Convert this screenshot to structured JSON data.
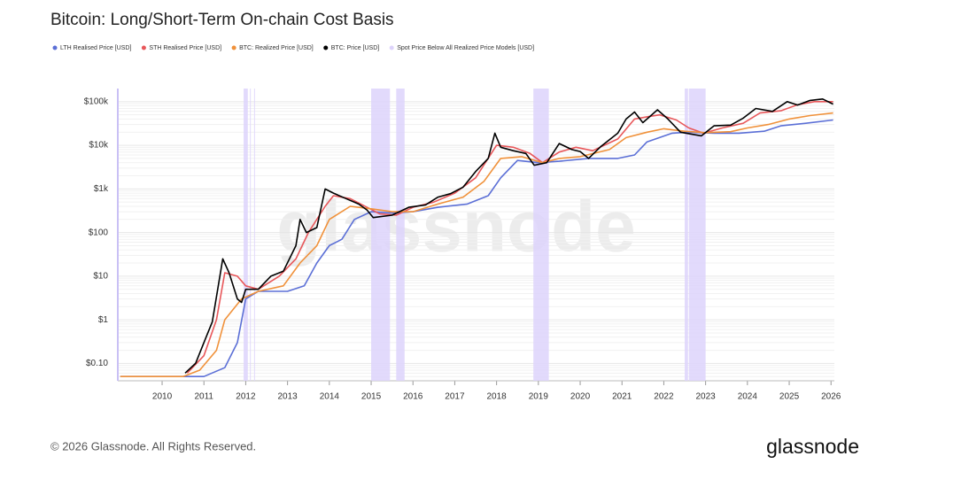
{
  "chart_data": {
    "type": "line",
    "title": "Bitcoin: Long/Short-Term On-chain Cost Basis",
    "watermark": "glassnode",
    "log_scale": true,
    "xlim": [
      2008.94,
      2026.08
    ],
    "xticks": [
      2010,
      2011,
      2012,
      2013,
      2014,
      2015,
      2016,
      2017,
      2018,
      2019,
      2020,
      2021,
      2022,
      2023,
      2024,
      2025,
      2026
    ],
    "ylim": [
      0.04,
      200000
    ],
    "yticks": [
      {
        "value": 0.1,
        "label": "$0.10"
      },
      {
        "value": 1,
        "label": "$1"
      },
      {
        "value": 10,
        "label": "$10"
      },
      {
        "value": 100,
        "label": "$100"
      },
      {
        "value": 1000,
        "label": "$1k"
      },
      {
        "value": 10000,
        "label": "$10k"
      },
      {
        "value": 100000,
        "label": "$100k"
      }
    ],
    "series": [
      {
        "name": "LTH Realised Price [USD]",
        "color": "#5b6fd6",
        "x": [
          2009.0,
          2010.5,
          2011.0,
          2011.5,
          2011.8,
          2012.0,
          2012.3,
          2013.0,
          2013.4,
          2013.7,
          2014.0,
          2014.3,
          2014.6,
          2015.0,
          2015.5,
          2016.0,
          2016.6,
          2017.3,
          2017.8,
          2018.1,
          2018.5,
          2019.0,
          2019.5,
          2020.2,
          2020.9,
          2021.3,
          2021.6,
          2022.2,
          2022.6,
          2023.2,
          2023.8,
          2024.4,
          2024.8,
          2025.4,
          2026.05
        ],
        "values": [
          0.05,
          0.05,
          0.05,
          0.08,
          0.3,
          3,
          4.5,
          4.5,
          6,
          20,
          50,
          70,
          200,
          300,
          280,
          300,
          380,
          450,
          700,
          1800,
          4500,
          4000,
          4300,
          5000,
          5000,
          6000,
          12000,
          19000,
          20000,
          19000,
          19000,
          21000,
          28000,
          32000,
          38000
        ]
      },
      {
        "name": "STH Realised Price [USD]",
        "color": "#e8575a",
        "x": [
          2010.6,
          2011.0,
          2011.3,
          2011.5,
          2011.8,
          2012.0,
          2012.3,
          2012.8,
          2013.2,
          2013.5,
          2013.9,
          2014.1,
          2014.5,
          2014.9,
          2015.2,
          2015.6,
          2016.0,
          2016.5,
          2017.0,
          2017.5,
          2018.0,
          2018.4,
          2018.8,
          2019.1,
          2019.5,
          2019.9,
          2020.3,
          2020.9,
          2021.3,
          2021.6,
          2021.9,
          2022.3,
          2022.6,
          2022.95,
          2023.4,
          2023.9,
          2024.3,
          2024.8,
          2025.2,
          2025.6,
          2026.05
        ],
        "values": [
          0.06,
          0.15,
          1,
          12,
          10,
          6,
          5,
          10,
          25,
          100,
          400,
          700,
          600,
          380,
          270,
          250,
          380,
          500,
          800,
          1800,
          10000,
          9000,
          6500,
          4000,
          7000,
          9000,
          7500,
          14000,
          40000,
          45000,
          50000,
          38000,
          25000,
          19000,
          25000,
          32000,
          55000,
          62000,
          85000,
          100000,
          100000
        ]
      },
      {
        "name": "BTC: Realized Price [USD]",
        "color": "#f0913a",
        "x": [
          2009.0,
          2010.5,
          2010.9,
          2011.3,
          2011.5,
          2011.9,
          2012.3,
          2012.9,
          2013.3,
          2013.7,
          2014.0,
          2014.5,
          2015.0,
          2015.5,
          2016.0,
          2016.6,
          2017.2,
          2017.7,
          2018.1,
          2018.6,
          2019.1,
          2019.5,
          2020.0,
          2020.7,
          2021.1,
          2021.6,
          2022.0,
          2022.5,
          2023.0,
          2023.6,
          2024.0,
          2024.5,
          2025.0,
          2025.5,
          2026.05
        ],
        "values": [
          0.05,
          0.05,
          0.07,
          0.2,
          1,
          3,
          4.5,
          6,
          20,
          50,
          200,
          400,
          350,
          300,
          300,
          450,
          650,
          1500,
          5000,
          5500,
          4000,
          5000,
          5500,
          8000,
          15000,
          20000,
          24000,
          21000,
          19500,
          20500,
          25000,
          30000,
          40000,
          48000,
          55000
        ]
      },
      {
        "name": "BTC: Price [USD]",
        "color": "#000000",
        "x": [
          2010.55,
          2010.8,
          2011.0,
          2011.2,
          2011.45,
          2011.6,
          2011.8,
          2011.9,
          2012.0,
          2012.3,
          2012.6,
          2012.9,
          2013.2,
          2013.3,
          2013.45,
          2013.7,
          2013.9,
          2014.1,
          2014.4,
          2014.7,
          2014.9,
          2015.05,
          2015.5,
          2015.9,
          2016.3,
          2016.6,
          2016.9,
          2017.2,
          2017.5,
          2017.8,
          2017.96,
          2018.1,
          2018.4,
          2018.7,
          2018.9,
          2019.2,
          2019.5,
          2019.8,
          2020.0,
          2020.2,
          2020.5,
          2020.9,
          2021.1,
          2021.3,
          2021.5,
          2021.85,
          2022.1,
          2022.4,
          2022.9,
          2023.2,
          2023.6,
          2023.9,
          2024.2,
          2024.6,
          2024.95,
          2025.2,
          2025.5,
          2025.8,
          2026.05
        ],
        "values": [
          0.06,
          0.1,
          0.3,
          0.9,
          25,
          12,
          3,
          2.5,
          5,
          5,
          10,
          13,
          50,
          200,
          100,
          130,
          1000,
          800,
          600,
          450,
          330,
          220,
          250,
          380,
          430,
          650,
          780,
          1100,
          2500,
          5000,
          19000,
          9000,
          7500,
          6500,
          3500,
          4000,
          11000,
          8000,
          7200,
          5000,
          9500,
          19000,
          40000,
          58000,
          33000,
          65000,
          40000,
          20000,
          16500,
          28000,
          29000,
          42000,
          70000,
          60000,
          100000,
          84000,
          107000,
          115000,
          88000
        ]
      },
      {
        "name": "Spot Price Below All Realized Price Models [USD]",
        "color": "#ddd3fb",
        "ranges": [
          [
            2011.95,
            2012.05
          ],
          [
            2012.1,
            2012.12
          ],
          [
            2012.2,
            2012.22
          ],
          [
            2015.0,
            2015.45
          ],
          [
            2015.6,
            2015.8
          ],
          [
            2018.88,
            2019.25
          ],
          [
            2022.5,
            2022.58
          ],
          [
            2022.6,
            2023.0
          ]
        ]
      }
    ]
  },
  "footer": {
    "copyright": "© 2026 Glassnode. All Rights Reserved.",
    "logo": "glassnode"
  }
}
